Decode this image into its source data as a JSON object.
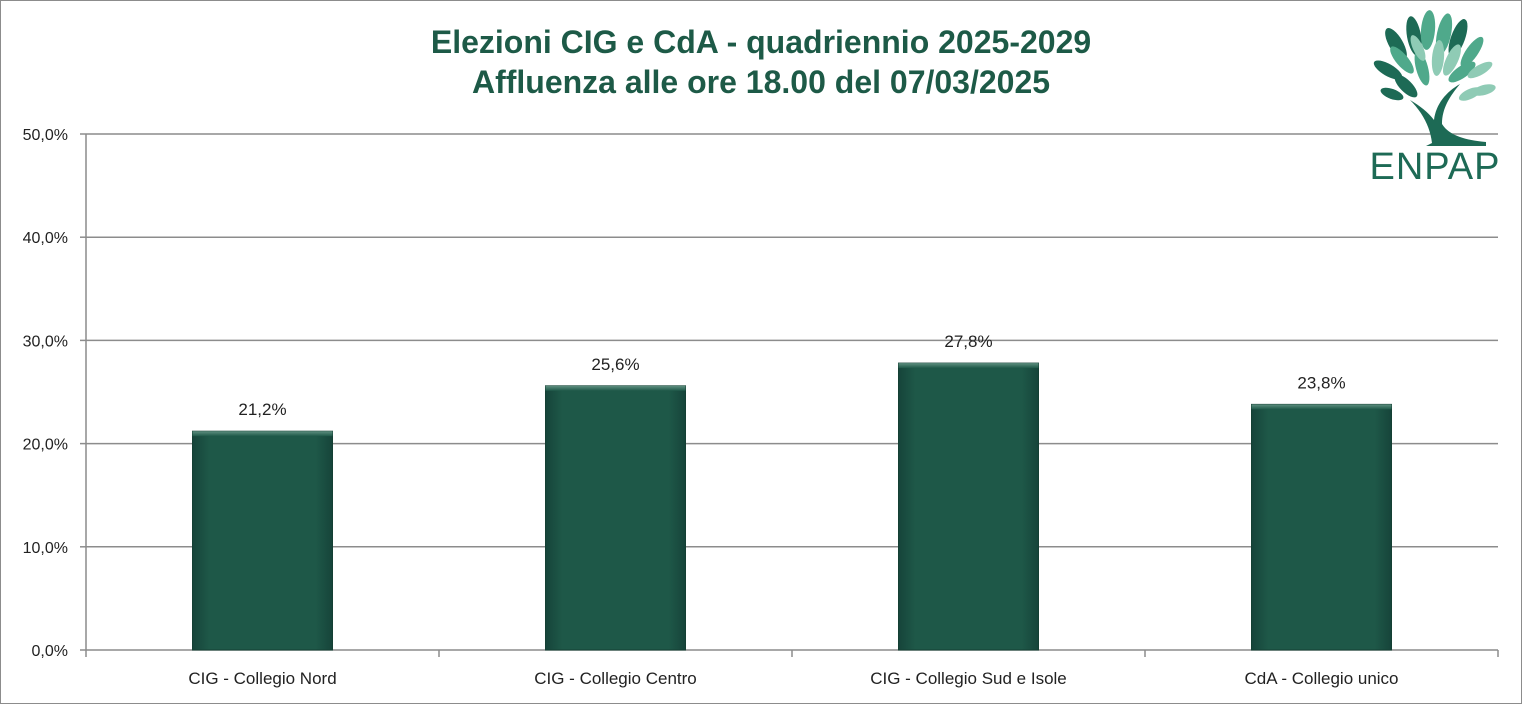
{
  "chart_data": {
    "type": "bar",
    "title": "Elezioni CIG e CdA - quadriennio 2025-2029",
    "subtitle": "Affluenza alle ore 18.00 del 07/03/2025",
    "xlabel": "",
    "ylabel": "",
    "categories": [
      "CIG - Collegio Nord",
      "CIG - Collegio Centro",
      "CIG - Collegio Sud e Isole",
      "CdA - Collegio unico"
    ],
    "values": [
      21.2,
      25.6,
      27.8,
      23.8
    ],
    "value_labels": [
      "21,2%",
      "25,6%",
      "27,8%",
      "23,8%"
    ],
    "ylim": [
      0,
      50
    ],
    "yticks": [
      0,
      10,
      20,
      30,
      40,
      50
    ],
    "ytick_labels": [
      "0,0%",
      "10,0%",
      "20,0%",
      "30,0%",
      "40,0%",
      "50,0%"
    ],
    "grid": true,
    "legend": "none",
    "bar_color": "#1e5848",
    "grid_color": "#8c8c8c"
  },
  "logo": {
    "text": "ENPAP",
    "icon": "tree-icon",
    "colors": [
      "#1d6a55",
      "#4fa98b",
      "#8fcbb5"
    ]
  }
}
